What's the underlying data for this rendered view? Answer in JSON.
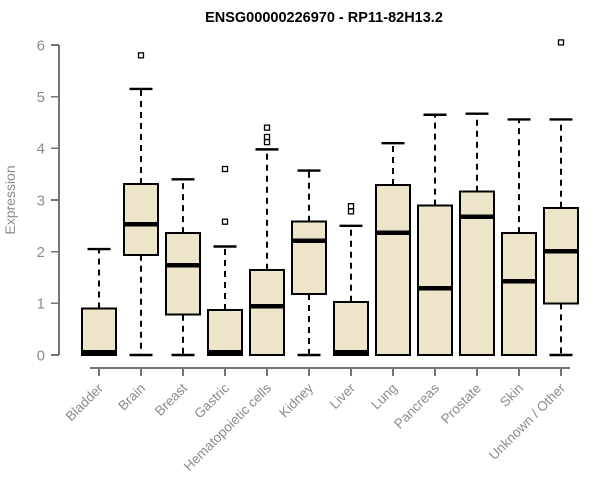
{
  "page": {
    "background": "#ffffff"
  },
  "chart_data": {
    "type": "boxplot",
    "title": "ENSG00000226970 - RP11-82H13.2",
    "ylabel": "Expression",
    "xlabel": "",
    "ylim": [
      0,
      6
    ],
    "yticks": [
      0,
      1,
      2,
      3,
      4,
      5,
      6
    ],
    "grid": false,
    "legend": null,
    "categories": [
      "Bladder",
      "Brain",
      "Breast",
      "Gastric",
      "Hematopoietic cells",
      "Kidney",
      "Liver",
      "Lung",
      "Pancreas",
      "Prostate",
      "Skin",
      "Unknown / Other"
    ],
    "series": [
      {
        "category": "Bladder",
        "whisker_low": 0,
        "q1": 0,
        "median": 0.05,
        "q3": 0.9,
        "whisker_high": 2.05,
        "outliers": []
      },
      {
        "category": "Brain",
        "whisker_low": 0,
        "q1": 1.94,
        "median": 2.53,
        "q3": 3.31,
        "whisker_high": 5.15,
        "outliers": [
          5.8
        ]
      },
      {
        "category": "Breast",
        "whisker_low": 0,
        "q1": 0.78,
        "median": 1.74,
        "q3": 2.36,
        "whisker_high": 3.4,
        "outliers": []
      },
      {
        "category": "Gastric",
        "whisker_low": 0,
        "q1": 0,
        "median": 0.05,
        "q3": 0.87,
        "whisker_high": 2.1,
        "outliers": [
          3.6,
          2.58
        ]
      },
      {
        "category": "Hematopoietic cells",
        "whisker_low": 0,
        "q1": 0,
        "median": 0.94,
        "q3": 1.65,
        "whisker_high": 3.98,
        "outliers": [
          4.4,
          4.22,
          4.12
        ]
      },
      {
        "category": "Kidney",
        "whisker_low": 0,
        "q1": 1.18,
        "median": 2.21,
        "q3": 2.58,
        "whisker_high": 3.57,
        "outliers": []
      },
      {
        "category": "Liver",
        "whisker_low": 0,
        "q1": 0,
        "median": 0.05,
        "q3": 1.03,
        "whisker_high": 2.5,
        "outliers": [
          2.88,
          2.78
        ]
      },
      {
        "category": "Lung",
        "whisker_low": 0,
        "q1": 0,
        "median": 2.37,
        "q3": 3.29,
        "whisker_high": 4.1,
        "outliers": []
      },
      {
        "category": "Pancreas",
        "whisker_low": 0,
        "q1": 0,
        "median": 1.29,
        "q3": 2.89,
        "whisker_high": 4.65,
        "outliers": []
      },
      {
        "category": "Prostate",
        "whisker_low": 0,
        "q1": 0,
        "median": 2.68,
        "q3": 3.16,
        "whisker_high": 4.67,
        "outliers": []
      },
      {
        "category": "Skin",
        "whisker_low": 0,
        "q1": 0,
        "median": 1.43,
        "q3": 2.36,
        "whisker_high": 4.56,
        "outliers": []
      },
      {
        "category": "Unknown / Other",
        "whisker_low": 0,
        "q1": 1.0,
        "median": 2.01,
        "q3": 2.85,
        "whisker_high": 4.56,
        "outliers": [
          6.05
        ]
      }
    ],
    "colors": {
      "box_fill": "#ece5c9",
      "box_border": "#000000",
      "median": "#000000",
      "whisker": "#000000",
      "outlier_fill": "#ffffff",
      "outlier_border": "#000000",
      "axis": "#757575",
      "tick_label": "#8c8c8c",
      "title": "#000000"
    }
  }
}
